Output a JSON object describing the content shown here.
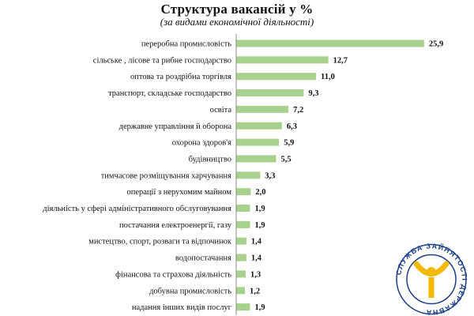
{
  "chart_data": {
    "type": "bar",
    "orientation": "horizontal",
    "title": "Структура вакансій у %",
    "subtitle": "(за видами економічної діяльності)",
    "categories": [
      "переробна промисловість",
      "сільське , лісове  та рибне господарство",
      "оптова та роздрібна торгівля",
      "транспорт, складське господарство",
      "освіта",
      "державне управління  й оборона",
      "охорона здоров'я",
      "будівництво",
      "тимчасове розміщування  харчування",
      "операції з нерухомим майном",
      "діяльність у сфері адміністративного  обслуговування",
      "постачання електроенергії, газу",
      "мистецтво, спорт, розваги та відпочинок",
      "водопостачання",
      "фінансова  та страхова діяльність",
      "добувна промисловість",
      "надання інших видів послуг"
    ],
    "values": [
      25.9,
      12.7,
      11.0,
      9.3,
      7.2,
      6.3,
      5.9,
      5.5,
      3.3,
      2.0,
      1.9,
      1.9,
      1.4,
      1.4,
      1.3,
      1.2,
      1.9
    ],
    "value_labels": [
      "25,9",
      "12,7",
      "11,0",
      "9,3",
      "7,2",
      "6,3",
      "5,9",
      "5,5",
      "3,3",
      "2,0",
      "1,9",
      "1,9",
      "1,4",
      "1,4",
      "1,3",
      "1,2",
      "1,9"
    ],
    "xlim": [
      0,
      27
    ],
    "bar_color": "#a9d18e",
    "axis_color": "#8c8c8c",
    "grid": false,
    "legend": "none"
  },
  "logo": {
    "text": "СЛУЖБА ЗАЙНЯТОСТІ ДЕРЖАВНА",
    "ring_color": "#ffffff",
    "text_color": "#1b3f8c",
    "outline_color": "#1b3f8c",
    "figure_color": "#f3b800"
  }
}
